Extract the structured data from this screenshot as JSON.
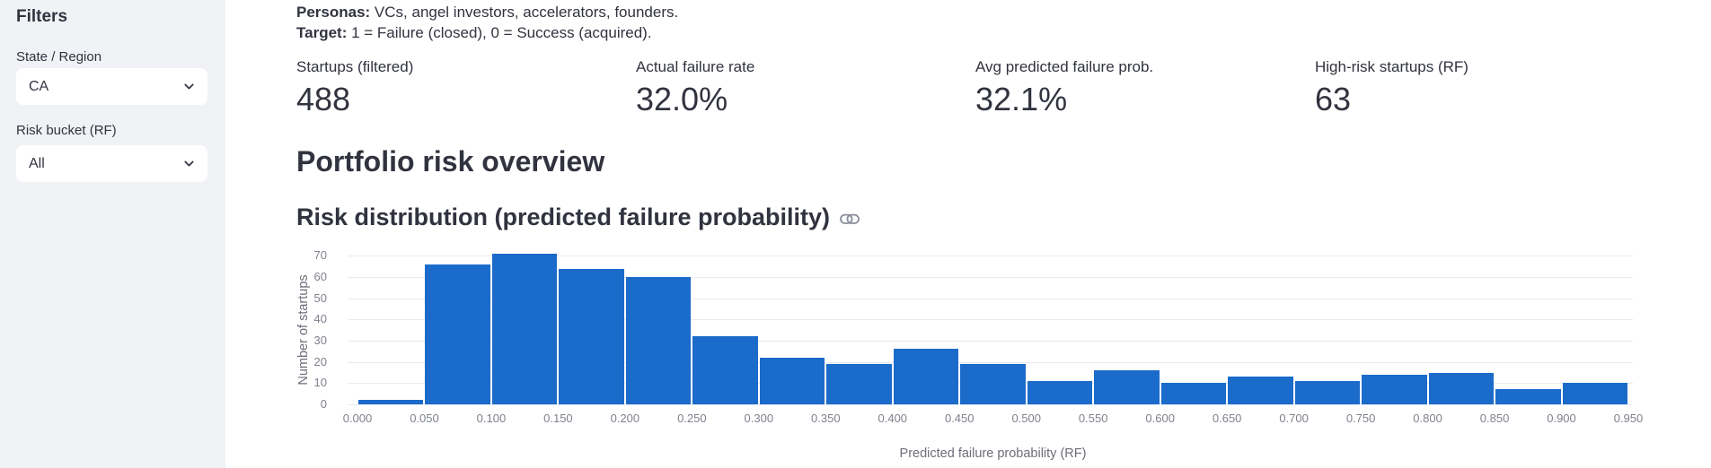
{
  "sidebar": {
    "title": "Filters",
    "filters": [
      {
        "label": "State / Region",
        "value": "CA"
      },
      {
        "label": "Risk bucket (RF)",
        "value": "All"
      }
    ]
  },
  "intro": {
    "personas_label": "Personas:",
    "personas_text": " VCs, angel investors, accelerators, founders.",
    "target_label": "Target:",
    "target_text": " 1 = Failure (closed), 0 = Success (acquired)."
  },
  "metrics": [
    {
      "label": "Startups (filtered)",
      "value": "488"
    },
    {
      "label": "Actual failure rate",
      "value": "32.0%"
    },
    {
      "label": "Avg predicted failure prob.",
      "value": "32.1%"
    },
    {
      "label": "High-risk startups (RF)",
      "value": "63"
    }
  ],
  "section": {
    "title": "Portfolio risk overview",
    "chart_heading": "Risk distribution (predicted failure probability)"
  },
  "icons": {
    "chevron_down": "chevron-down-icon",
    "anchor_link": "link-icon"
  },
  "chart_data": {
    "type": "bar",
    "title": "Risk distribution (predicted failure probability)",
    "xlabel": "Predicted failure probability (RF)",
    "ylabel": "Number of startups",
    "bin_width": 0.05,
    "categories": [
      0.0,
      0.05,
      0.1,
      0.15,
      0.2,
      0.25,
      0.3,
      0.35,
      0.4,
      0.45,
      0.5,
      0.55,
      0.6,
      0.65,
      0.7,
      0.75,
      0.8,
      0.85,
      0.9
    ],
    "values": [
      2,
      66,
      71,
      64,
      60,
      32,
      22,
      19,
      26,
      19,
      11,
      16,
      10,
      13,
      11,
      14,
      15,
      7,
      10
    ],
    "x_tick_labels": [
      "0.000",
      "0.050",
      "0.100",
      "0.150",
      "0.200",
      "0.250",
      "0.300",
      "0.350",
      "0.400",
      "0.450",
      "0.500",
      "0.550",
      "0.600",
      "0.650",
      "0.700",
      "0.750",
      "0.800",
      "0.850",
      "0.900",
      "0.950"
    ],
    "y_ticks": [
      0,
      10,
      20,
      30,
      40,
      50,
      60,
      70
    ],
    "ylim": [
      0,
      75
    ],
    "grid": true,
    "legend": "none",
    "bar_color": "#1b6bca"
  }
}
